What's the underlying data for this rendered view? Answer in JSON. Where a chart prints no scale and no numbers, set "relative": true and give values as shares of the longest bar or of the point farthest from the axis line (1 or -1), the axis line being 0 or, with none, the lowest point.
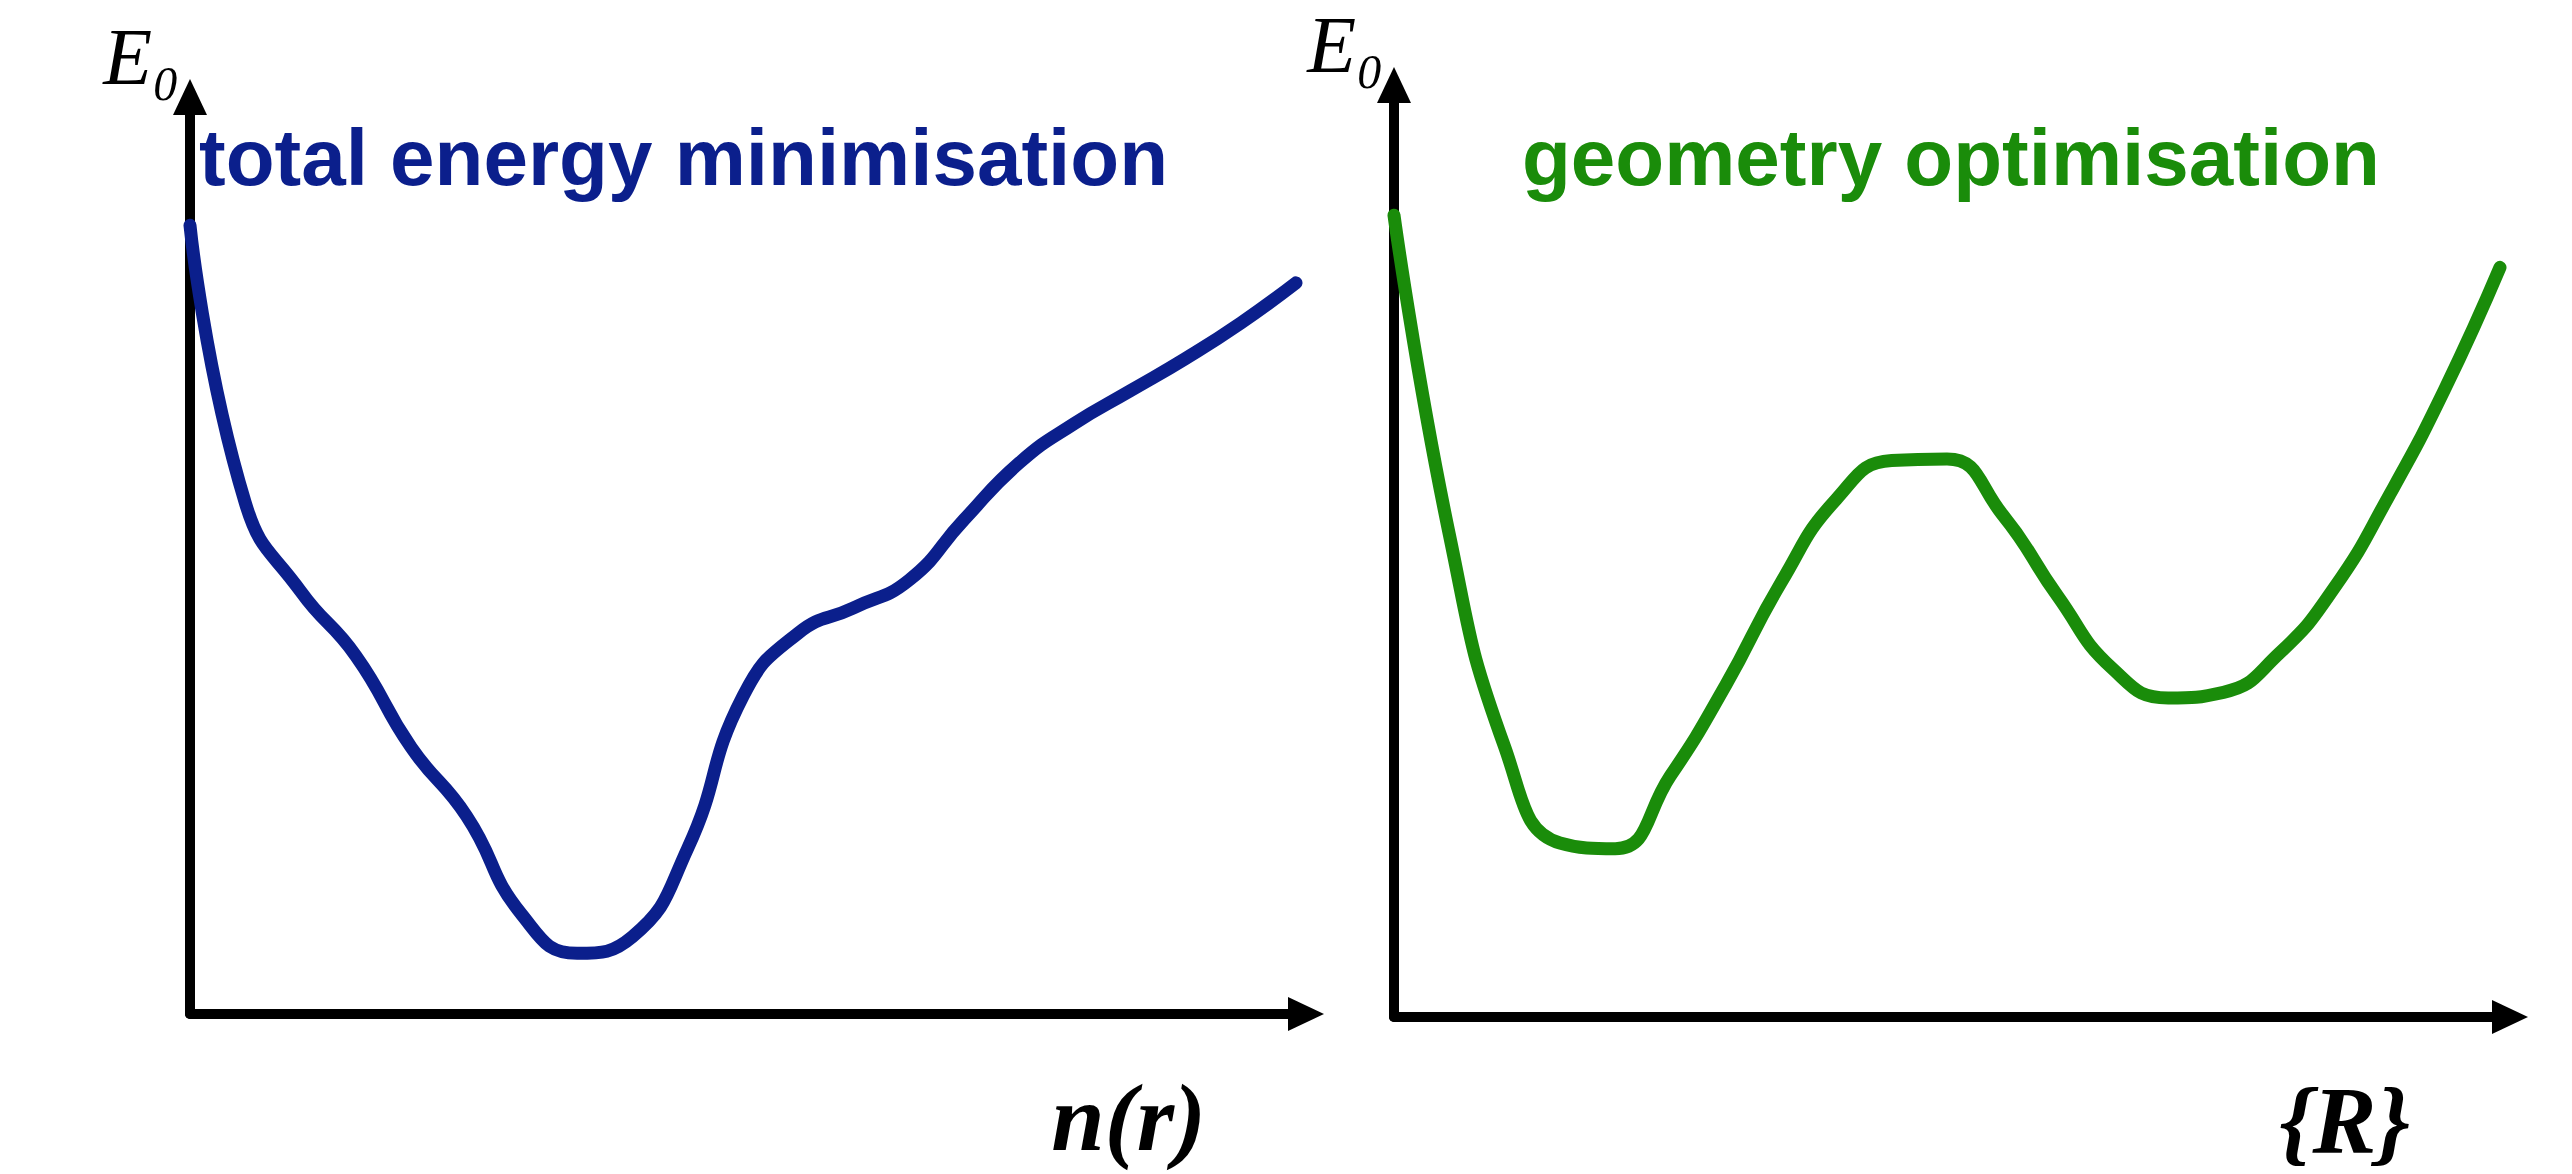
{
  "chart_data": [
    {
      "type": "line",
      "title": "total energy minimisation",
      "xlabel": "n(r)",
      "ylabel": "E₀",
      "relative": true,
      "marker": "none",
      "grid": false,
      "categories": [
        null,
        null,
        null,
        null,
        null,
        null,
        null,
        null,
        null,
        null,
        null,
        null,
        null,
        null,
        null,
        null,
        null,
        null,
        null,
        null,
        null
      ],
      "series": [
        {
          "color": "#0b1f8c",
          "values": [
            1.0,
            0.648,
            0.536,
            0.454,
            0.338,
            0.251,
            0.126,
            0.077,
            0.098,
            0.21,
            0.403,
            0.483,
            0.515,
            0.55,
            0.627,
            0.699,
            0.749,
            0.79,
            0.831,
            0.876,
            0.927
          ]
        }
      ]
    },
    {
      "type": "line",
      "title": "geometry optimisation",
      "xlabel": "{R}",
      "ylabel": "E₀",
      "relative": true,
      "marker": "none",
      "grid": false,
      "categories": [
        null,
        null,
        null,
        null,
        null,
        null,
        null,
        null,
        null,
        null,
        null,
        null,
        null,
        null,
        null,
        null,
        null,
        null,
        null,
        null,
        null
      ],
      "series": [
        {
          "color": "#1a8c0a",
          "values": [
            1.0,
            0.602,
            0.337,
            0.217,
            0.21,
            0.301,
            0.414,
            0.542,
            0.646,
            0.694,
            0.696,
            0.627,
            0.525,
            0.434,
            0.398,
            0.405,
            0.453,
            0.535,
            0.651,
            0.783,
            0.935
          ]
        }
      ]
    }
  ]
}
